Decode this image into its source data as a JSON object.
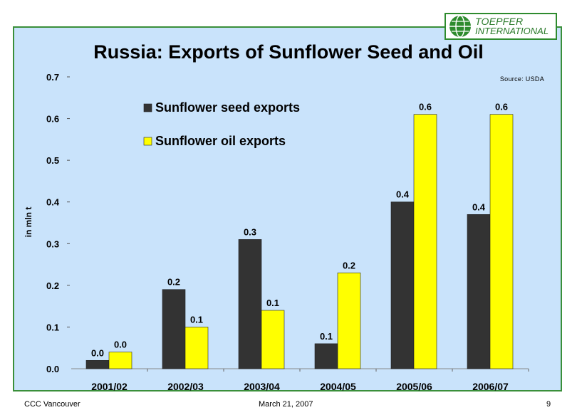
{
  "logo": {
    "line1": "TOEPFER",
    "line2": "INTERNATIONAL"
  },
  "title": "Russia: Exports of Sunflower Seed and Oil",
  "source": "Source: USDA",
  "footer": {
    "left": "CCC Vancouver",
    "center": "March 21, 2007",
    "right": "9"
  },
  "colors": {
    "frame": "#3a8f3a",
    "background": "#c9e3fb",
    "seed": "#333333",
    "oil": "#ffff00"
  },
  "chart_data": {
    "type": "bar",
    "categories": [
      "2001/02",
      "2002/03",
      "2003/04",
      "2004/05",
      "2005/06",
      "2006/07"
    ],
    "series": [
      {
        "name": "Sunflower seed  exports",
        "values": [
          0.02,
          0.19,
          0.31,
          0.06,
          0.4,
          0.37
        ],
        "labels": [
          "0.0",
          "0.2",
          "0.3",
          "0.1",
          "0.4",
          "0.4"
        ],
        "color": "#333333"
      },
      {
        "name": "Sunflower oil exports",
        "values": [
          0.04,
          0.1,
          0.14,
          0.23,
          0.61,
          0.61
        ],
        "labels": [
          "0.0",
          "0.1",
          "0.1",
          "0.2",
          "0.6",
          "0.6"
        ],
        "color": "#ffff00"
      }
    ],
    "ylabel": "in mln t",
    "ylim": [
      0,
      0.7
    ],
    "yticks": [
      "0.0",
      "0.1",
      "0.2",
      "0.3",
      "0.4",
      "0.5",
      "0.6",
      "0.7"
    ],
    "grid": false,
    "legend": "top-left"
  }
}
